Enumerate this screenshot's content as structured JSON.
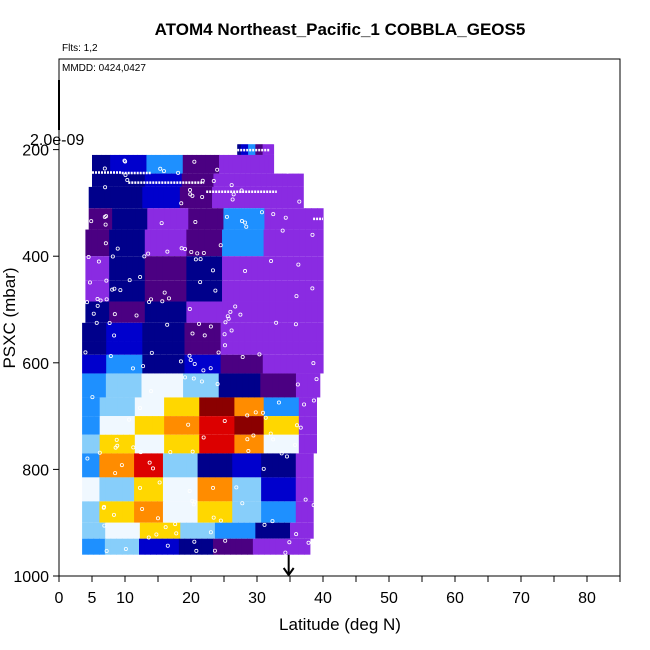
{
  "chart_data": {
    "type": "heatmap",
    "title": "ATOM4 Northeast_Pacific_1 COBBLA_GEOS5",
    "flights_text": "Flts: 1,2",
    "dates_text": "MMDD: 0424,0427",
    "xlabel": "Latitude (deg N)",
    "ylabel": "PSXC (mbar)",
    "colorbar_label": "2.0e-09",
    "xlim": [
      0,
      85
    ],
    "ylim": [
      1000,
      30
    ],
    "x_ticks": [
      0,
      5,
      10,
      20,
      30,
      40,
      50,
      60,
      70,
      80
    ],
    "x_minor_ticks": [
      15,
      25,
      35,
      45,
      55,
      65,
      75,
      85
    ],
    "y_ticks": [
      200,
      400,
      600,
      800,
      1000
    ],
    "arrow_latitude": 34.8,
    "colors": {
      "violet": "#8a2be2",
      "indigo": "#4b0082",
      "dark_blue": "#00008b",
      "blue": "#0000cd",
      "dodger": "#1e90ff",
      "light_blue": "#87cefa",
      "white": "#f0f8ff",
      "yellow": "#ffd700",
      "orange": "#ff8c00",
      "red": "#dc0000",
      "dark_red": "#8b0000"
    },
    "bands": [
      {
        "p_top": 525,
        "p_bot": 560,
        "lat_min": 3.5,
        "lat_max": 40,
        "scheme": "low"
      },
      {
        "p_top": 560,
        "p_bot": 585,
        "lat_min": 3.5,
        "lat_max": 40,
        "scheme": "low"
      },
      {
        "p_top": 585,
        "p_bot": 620,
        "lat_min": 3.5,
        "lat_max": 40,
        "scheme": "lowmid"
      },
      {
        "p_top": 620,
        "p_bot": 665,
        "lat_min": 3.5,
        "lat_max": 39.5,
        "scheme": "mid"
      },
      {
        "p_top": 665,
        "p_bot": 700,
        "lat_min": 3.5,
        "lat_max": 39,
        "scheme": "hi"
      },
      {
        "p_top": 700,
        "p_bot": 735,
        "lat_min": 3.5,
        "lat_max": 39,
        "scheme": "hot"
      },
      {
        "p_top": 735,
        "p_bot": 770,
        "lat_min": 3.5,
        "lat_max": 39,
        "scheme": "hot2"
      },
      {
        "p_top": 770,
        "p_bot": 815,
        "lat_min": 3.5,
        "lat_max": 38.5,
        "scheme": "hot3"
      },
      {
        "p_top": 815,
        "p_bot": 860,
        "lat_min": 3.5,
        "lat_max": 38.5,
        "scheme": "hi2"
      },
      {
        "p_top": 860,
        "p_bot": 900,
        "lat_min": 3.5,
        "lat_max": 38.5,
        "scheme": "hi3"
      },
      {
        "p_top": 900,
        "p_bot": 930,
        "lat_min": 3.5,
        "lat_max": 38.5,
        "scheme": "mid2"
      },
      {
        "p_top": 930,
        "p_bot": 960,
        "lat_min": 3.5,
        "lat_max": 38,
        "scheme": "low2"
      }
    ],
    "upper_bands": [
      {
        "p_top": 190,
        "p_bot": 210,
        "lat_min": 27,
        "lat_max": 32.5,
        "scheme": "up"
      },
      {
        "p_top": 210,
        "p_bot": 245,
        "lat_min": 5,
        "lat_max": 32.5,
        "scheme": "up"
      },
      {
        "p_top": 245,
        "p_bot": 270,
        "lat_min": 5,
        "lat_max": 37,
        "scheme": "up2"
      },
      {
        "p_top": 270,
        "p_bot": 310,
        "lat_min": 4.5,
        "lat_max": 37,
        "scheme": "up2"
      },
      {
        "p_top": 310,
        "p_bot": 350,
        "lat_min": 4.5,
        "lat_max": 40,
        "scheme": "up3"
      },
      {
        "p_top": 350,
        "p_bot": 400,
        "lat_min": 4,
        "lat_max": 40,
        "scheme": "up3"
      },
      {
        "p_top": 400,
        "p_bot": 445,
        "lat_min": 4,
        "lat_max": 40,
        "scheme": "up4"
      },
      {
        "p_top": 445,
        "p_bot": 485,
        "lat_min": 4,
        "lat_max": 40,
        "scheme": "up4"
      },
      {
        "p_top": 485,
        "p_bot": 525,
        "lat_min": 4,
        "lat_max": 40,
        "scheme": "up5"
      }
    ],
    "flight_track": [
      {
        "lat": 5,
        "p": 243
      },
      {
        "lat": 10,
        "p": 244
      },
      {
        "lat": 14,
        "p": 260
      },
      {
        "lat": 18,
        "p": 265
      },
      {
        "lat": 22,
        "p": 268
      },
      {
        "lat": 27,
        "p": 202
      },
      {
        "lat": 31,
        "p": 201
      },
      {
        "lat": 33,
        "p": 300
      },
      {
        "lat": 35,
        "p": 310
      },
      {
        "lat": 38,
        "p": 330
      },
      {
        "lat": 39,
        "p": 330
      }
    ]
  }
}
